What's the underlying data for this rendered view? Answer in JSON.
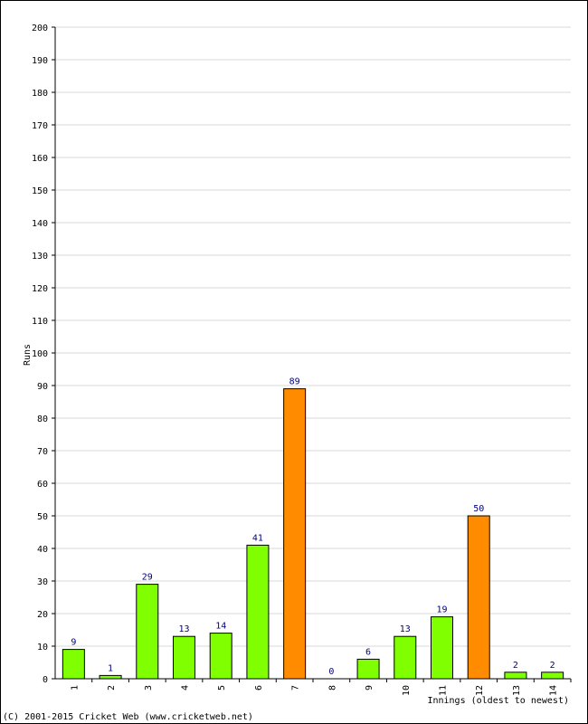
{
  "chart_data": {
    "type": "bar",
    "categories": [
      "1",
      "2",
      "3",
      "4",
      "5",
      "6",
      "7",
      "8",
      "9",
      "10",
      "11",
      "12",
      "13",
      "14"
    ],
    "values": [
      9,
      1,
      29,
      13,
      14,
      41,
      89,
      0,
      6,
      13,
      19,
      50,
      2,
      2
    ],
    "highlight": [
      false,
      false,
      false,
      false,
      false,
      false,
      true,
      false,
      false,
      false,
      false,
      true,
      false,
      false
    ],
    "xlabel": "Innings (oldest to newest)",
    "ylabel": "Runs",
    "ylim": [
      0,
      200
    ],
    "yticks": [
      0,
      10,
      20,
      30,
      40,
      50,
      60,
      70,
      80,
      90,
      100,
      110,
      120,
      130,
      140,
      150,
      160,
      170,
      180,
      190,
      200
    ],
    "grid": true,
    "colors": {
      "bar": "#80ff00",
      "highlight_bar": "#ff8c00",
      "bar_border": "#000000",
      "grid": "#d8d8d8",
      "value_label": "#000080"
    }
  },
  "footer": {
    "copyright": "(C) 2001-2015 Cricket Web (www.cricketweb.net)"
  }
}
